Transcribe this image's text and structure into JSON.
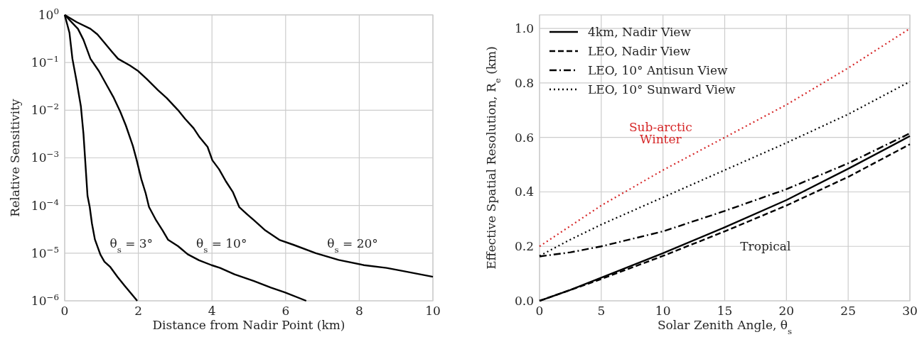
{
  "chart_data": [
    {
      "type": "line",
      "xlabel": "Distance from Nadir Point (km)",
      "ylabel": "Relative Sensitivity",
      "log": "y",
      "grid": true,
      "legend": false,
      "line_style": "solid",
      "xlim": [
        0,
        10
      ],
      "ylim": [
        1e-06,
        1
      ],
      "xticks": [
        0,
        2,
        4,
        6,
        8,
        10
      ],
      "yticks": [
        {
          "value": 1,
          "label": "10$^{0}$"
        },
        {
          "value": 0.1,
          "label": "10$^{−1}$"
        },
        {
          "value": 0.01,
          "label": "10$^{−2}$"
        },
        {
          "value": 0.001,
          "label": "10$^{−3}$"
        },
        {
          "value": 0.0001,
          "label": "10$^{−4}$"
        },
        {
          "value": 1e-05,
          "label": "10$^{−5}$"
        },
        {
          "value": 1e-06,
          "label": "10$^{−6}$"
        }
      ],
      "series": [
        {
          "color": "#000000",
          "x": [
            0,
            0.13,
            0.21,
            0.32,
            0.44,
            0.51,
            0.57,
            0.62,
            0.68,
            0.74,
            0.82,
            0.97,
            1.08,
            1.24,
            1.43,
            1.62,
            1.97
          ],
          "values": [
            1,
            0.42,
            0.12,
            0.042,
            0.012,
            0.0032,
            0.00062,
            0.00016,
            9.3e-05,
            4.2e-05,
            1.95e-05,
            9.3e-06,
            6.6e-06,
            5.1e-06,
            3.2e-06,
            2.1e-06,
            1e-06
          ]
        },
        {
          "color": "#000000",
          "x": [
            0,
            0.36,
            0.51,
            0.7,
            0.93,
            1.12,
            1.32,
            1.51,
            1.66,
            1.85,
            1.95,
            2.08,
            2.2,
            2.29,
            2.47,
            2.66,
            2.81,
            3.08,
            3.34,
            3.65,
            3.99,
            4.22,
            4.61,
            5.14,
            5.6,
            5.98,
            6.56
          ],
          "values": [
            1,
            0.51,
            0.3,
            0.12,
            0.066,
            0.036,
            0.019,
            0.0093,
            0.0048,
            0.0018,
            0.00093,
            0.00036,
            0.00018,
            9.3e-05,
            5.1e-05,
            3e-05,
            1.9e-05,
            1.4e-05,
            9.5e-06,
            7.1e-06,
            5.6e-06,
            4.9e-06,
            3.6e-06,
            2.6e-06,
            1.9e-06,
            1.5e-06,
            1e-06
          ]
        },
        {
          "color": "#000000",
          "x": [
            0,
            0.32,
            0.7,
            0.89,
            1.08,
            1.28,
            1.45,
            1.77,
            2,
            2.23,
            2.54,
            2.77,
            3.08,
            3.27,
            3.5,
            3.65,
            3.88,
            4.01,
            4.19,
            4.38,
            4.57,
            4.74,
            4.95,
            5.14,
            5.45,
            5.83,
            6.21,
            6.82,
            7.44,
            8.13,
            8.74,
            9.2,
            10
          ],
          "values": [
            1,
            0.71,
            0.51,
            0.39,
            0.26,
            0.17,
            0.12,
            0.087,
            0.066,
            0.045,
            0.026,
            0.018,
            0.01,
            0.0066,
            0.0042,
            0.0028,
            0.0017,
            0.00089,
            0.00058,
            0.00032,
            0.00019,
            9.3e-05,
            6.6e-05,
            4.9e-05,
            3e-05,
            1.9e-05,
            1.5e-05,
            1e-05,
            7.2e-06,
            5.6e-06,
            4.9e-06,
            4.2e-06,
            3.2e-06
          ]
        }
      ],
      "annotations": [
        "θ$_{s}$ = 3°",
        "θ$_{s}$ = 10°",
        "θ$_{s}$ = 20°"
      ]
    },
    {
      "type": "line",
      "xlabel": "Solar Zenith Angle, θ$_{s}$",
      "ylabel": "Effective Spatial Resolution, R$_{e}$ (km)",
      "grid": true,
      "legend": "top left",
      "xlim": [
        0,
        30
      ],
      "ylim": [
        0,
        1.05
      ],
      "xticks": [
        0,
        5,
        10,
        15,
        20,
        25,
        30
      ],
      "yticks": [
        {
          "value": 0,
          "label": "0.0"
        },
        0.2,
        0.4,
        0.6,
        0.8,
        {
          "value": 1,
          "label": "1.0"
        }
      ],
      "x": [
        0,
        2.5,
        5,
        10,
        15,
        20,
        25,
        30
      ],
      "series": [
        {
          "name": "4km, Nadir View",
          "color": "#000000",
          "line_style": "solid",
          "values": [
            0,
            0.04,
            0.085,
            0.175,
            0.27,
            0.37,
            0.485,
            0.605
          ]
        },
        {
          "name": "LEO, Nadir View",
          "color": "#000000",
          "line_style": "dashed",
          "values": [
            0,
            0.04,
            0.08,
            0.165,
            0.255,
            0.35,
            0.455,
            0.575
          ]
        },
        {
          "name": "LEO, 10° Antisun View",
          "color": "#000000",
          "line_style": "dashdot",
          "values": [
            0.163,
            0.178,
            0.2,
            0.255,
            0.33,
            0.41,
            0.505,
            0.615
          ]
        },
        {
          "name": "LEO, 10° Sunward View",
          "color": "#000000",
          "line_style": "dotted",
          "values": [
            0.165,
            0.225,
            0.28,
            0.38,
            0.48,
            0.58,
            0.685,
            0.805
          ]
        },
        {
          "color": "#d62728",
          "line_style": "dotted",
          "values": [
            0.2,
            0.275,
            0.35,
            0.48,
            0.6,
            0.72,
            0.855,
            1.0
          ]
        }
      ],
      "annotations": [
        "Sub-arctic\nWinter",
        "Tropical"
      ]
    }
  ]
}
